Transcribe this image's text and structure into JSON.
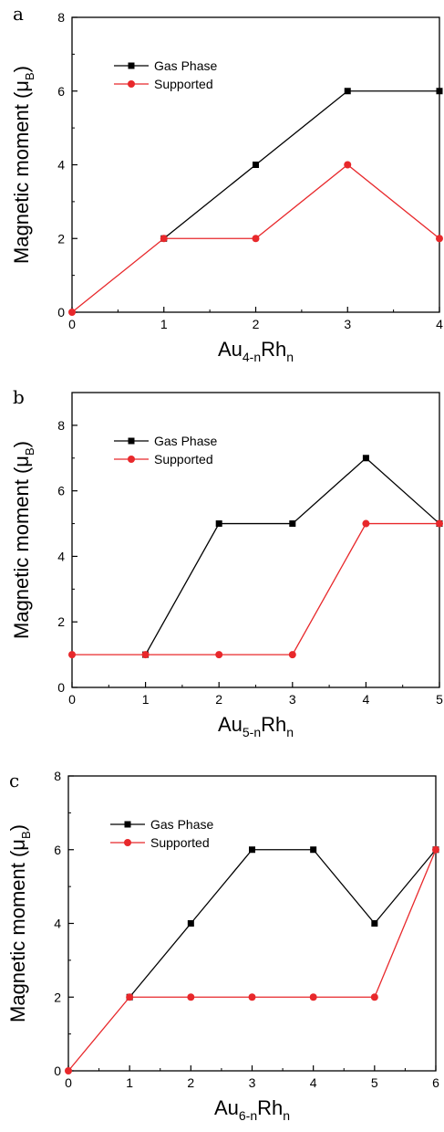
{
  "colors": {
    "gas": "#000000",
    "supported": "#e8282b"
  },
  "legend": {
    "gas_label": "Gas Phase",
    "supported_label": "Supported"
  },
  "ylabel": {
    "main": "Magnetic moment (μ",
    "sub": "B",
    "close": ")"
  },
  "chart_data": [
    {
      "type": "line",
      "panel": "a",
      "xlabel": {
        "main1": "Au",
        "sub1": "4-n",
        "main2": "Rh",
        "sub2": "n"
      },
      "xlim": [
        0,
        4
      ],
      "ylim": [
        0,
        8
      ],
      "x": [
        0,
        1,
        2,
        3,
        4
      ],
      "xticks": [
        "0",
        "1",
        "2",
        "3",
        "4"
      ],
      "yticks": [
        "0",
        "2",
        "4",
        "6",
        "8"
      ],
      "series": [
        {
          "name": "Gas Phase",
          "x": [
            1,
            2,
            3,
            4
          ],
          "y": [
            2,
            4,
            6,
            6
          ]
        },
        {
          "name": "Supported",
          "x": [
            0,
            1,
            2,
            3,
            4
          ],
          "y": [
            0,
            2,
            2,
            4,
            2
          ]
        }
      ]
    },
    {
      "type": "line",
      "panel": "b",
      "xlabel": {
        "main1": "Au",
        "sub1": "5-n",
        "main2": "Rh",
        "sub2": "n"
      },
      "xlim": [
        0,
        5
      ],
      "ylim": [
        0,
        9
      ],
      "x": [
        0,
        1,
        2,
        3,
        4,
        5
      ],
      "xticks": [
        "0",
        "1",
        "2",
        "3",
        "4",
        "5"
      ],
      "yticks": [
        "0",
        "2",
        "4",
        "6",
        "8"
      ],
      "series": [
        {
          "name": "Gas Phase",
          "x": [
            1,
            2,
            3,
            4,
            5
          ],
          "y": [
            1,
            5,
            5,
            7,
            5
          ]
        },
        {
          "name": "Supported",
          "x": [
            0,
            1,
            2,
            3,
            4,
            5
          ],
          "y": [
            1,
            1,
            1,
            1,
            5,
            5
          ]
        }
      ]
    },
    {
      "type": "line",
      "panel": "c",
      "xlabel": {
        "main1": "Au",
        "sub1": "6-n",
        "main2": "Rh",
        "sub2": "n"
      },
      "xlim": [
        0,
        6
      ],
      "ylim": [
        0,
        8
      ],
      "x": [
        0,
        1,
        2,
        3,
        4,
        5,
        6
      ],
      "xticks": [
        "0",
        "1",
        "2",
        "3",
        "4",
        "5",
        "6"
      ],
      "yticks": [
        "0",
        "2",
        "4",
        "6",
        "8"
      ],
      "series": [
        {
          "name": "Gas Phase",
          "x": [
            1,
            2,
            3,
            4,
            5,
            6
          ],
          "y": [
            2,
            4,
            6,
            6,
            4,
            6
          ]
        },
        {
          "name": "Supported",
          "x": [
            0,
            1,
            2,
            3,
            4,
            5,
            6
          ],
          "y": [
            0,
            2,
            2,
            2,
            2,
            2,
            6
          ]
        }
      ]
    }
  ]
}
